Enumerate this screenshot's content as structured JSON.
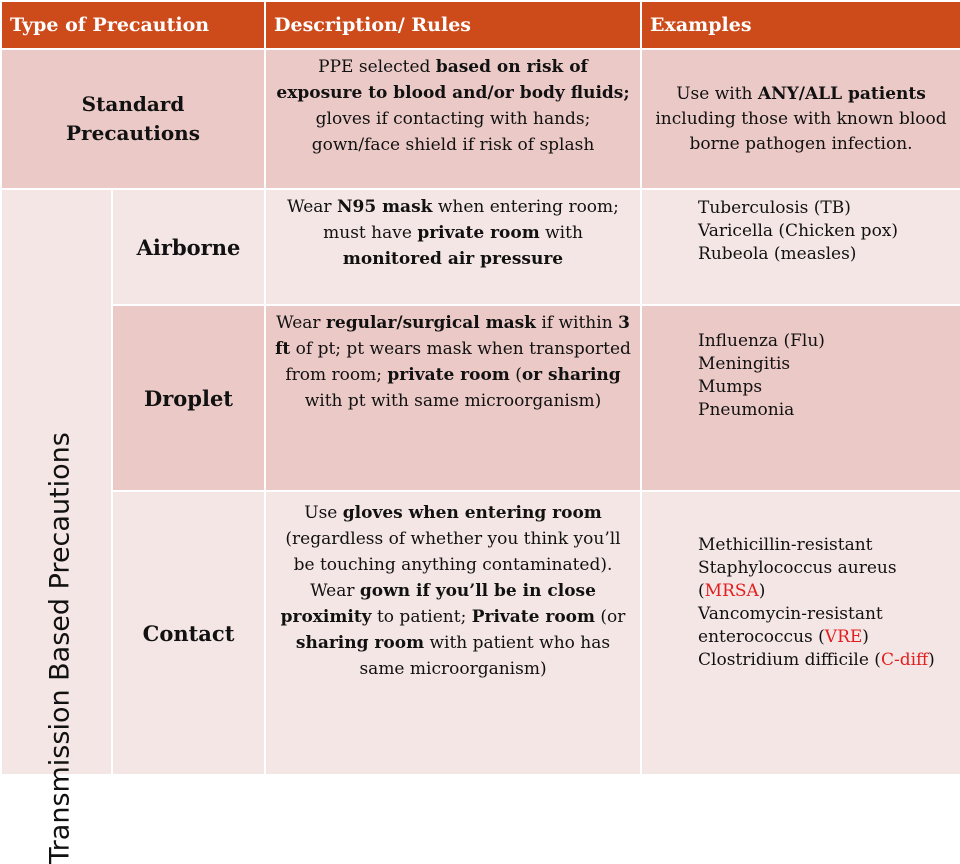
{
  "header": {
    "col1": "Type of Precaution",
    "col2": "Description/ Rules",
    "col3": "Examples"
  },
  "standard": {
    "label_line1": "Standard",
    "label_line2": "Precautions",
    "desc_a": "PPE selected ",
    "desc_b": "based on risk of exposure to blood and/or body fluids;",
    "desc_c": " gloves if contacting with hands; gown/face shield if risk of splash",
    "ex_a": "Use with ",
    "ex_b": "ANY/ALL patients",
    "ex_c": " including those with known blood borne pathogen infection."
  },
  "transmission_label": "Transmission Based Precautions",
  "airborne": {
    "label": "Airborne",
    "desc_a": "Wear ",
    "desc_b": "N95 mask",
    "desc_c": " when entering room; must have ",
    "desc_d": "private room",
    "desc_e": " with ",
    "desc_f": "monitored air pressure",
    "examples": [
      "Tuberculosis (TB)",
      "Varicella (Chicken pox)",
      "Rubeola (measles)"
    ]
  },
  "droplet": {
    "label": "Droplet",
    "desc_a": "Wear ",
    "desc_b": "regular/surgical  mask",
    "desc_c": " if within ",
    "desc_d": "3 ft",
    "desc_e": " of pt; pt wears mask when transported from room; ",
    "desc_f": "private room",
    "desc_g": " (",
    "desc_h": "or sharing",
    "desc_i": " with pt with same microorganism)",
    "examples": [
      "Influenza (Flu)",
      "Meningitis",
      "Mumps",
      "Pneumonia"
    ]
  },
  "contact": {
    "label": "Contact",
    "desc_a": "Use ",
    "desc_b": "gloves when entering room",
    "desc_c": " (regardless of whether you think you’ll be touching anything contaminated). Wear ",
    "desc_d": "gown if you’ll be in close proximity",
    "desc_e": " to patient; ",
    "desc_f": "Private room",
    "desc_g": " (or ",
    "desc_h": "sharing room",
    "desc_i": " with patient who has same microorganism)",
    "ex1": "Methicillin-resistant",
    "ex2_a": "Staphylococcus aureus (",
    "ex2_red": "MRSA",
    "ex2_b": ")",
    "ex3": "Vancomycin-resistant",
    "ex4_a": "enterococcus (",
    "ex4_red": "VRE",
    "ex4_b": ")",
    "ex5_a": "Clostridium difficile (",
    "ex5_red": "C-diff",
    "ex5_b": ")"
  },
  "colors": {
    "header_bg": "#cd4a1b",
    "row_dark": "#eac9c6",
    "row_light": "#f4e6e5",
    "highlight_red": "#e02020"
  }
}
